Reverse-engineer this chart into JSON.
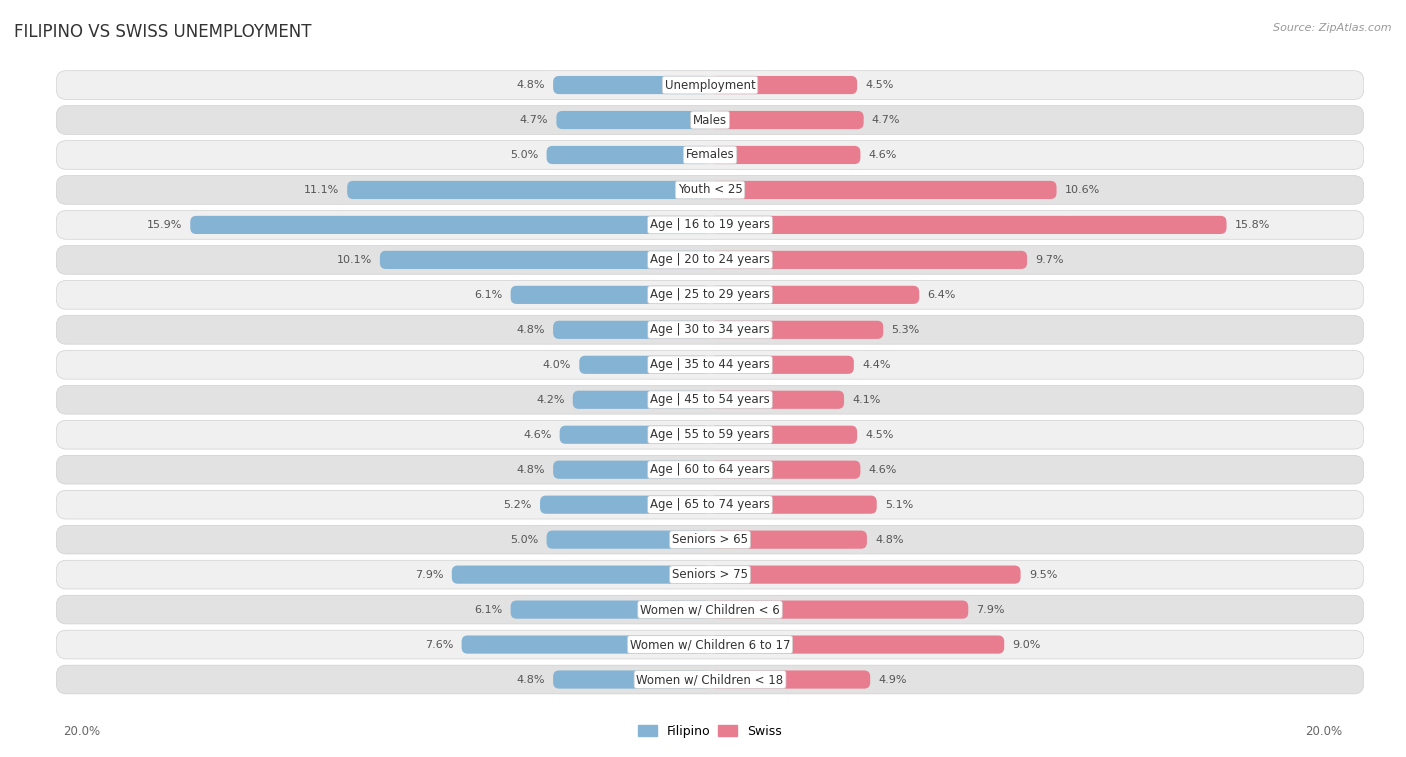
{
  "title": "FILIPINO VS SWISS UNEMPLOYMENT",
  "source": "Source: ZipAtlas.com",
  "categories": [
    "Unemployment",
    "Males",
    "Females",
    "Youth < 25",
    "Age | 16 to 19 years",
    "Age | 20 to 24 years",
    "Age | 25 to 29 years",
    "Age | 30 to 34 years",
    "Age | 35 to 44 years",
    "Age | 45 to 54 years",
    "Age | 55 to 59 years",
    "Age | 60 to 64 years",
    "Age | 65 to 74 years",
    "Seniors > 65",
    "Seniors > 75",
    "Women w/ Children < 6",
    "Women w/ Children 6 to 17",
    "Women w/ Children < 18"
  ],
  "filipino_values": [
    4.8,
    4.7,
    5.0,
    11.1,
    15.9,
    10.1,
    6.1,
    4.8,
    4.0,
    4.2,
    4.6,
    4.8,
    5.2,
    5.0,
    7.9,
    6.1,
    7.6,
    4.8
  ],
  "swiss_values": [
    4.5,
    4.7,
    4.6,
    10.6,
    15.8,
    9.7,
    6.4,
    5.3,
    4.4,
    4.1,
    4.5,
    4.6,
    5.1,
    4.8,
    9.5,
    7.9,
    9.0,
    4.9
  ],
  "filipino_color": "#85b3d4",
  "swiss_color": "#e87d90",
  "bar_height": 0.52,
  "xlim": 20.0,
  "row_bg_light": "#f0f0f0",
  "row_bg_dark": "#e2e2e2",
  "row_border_color": "#d0d0d0",
  "title_fontsize": 12,
  "label_fontsize": 8.5,
  "value_fontsize": 8.0,
  "axis_label_fontsize": 8.5,
  "legend_fontsize": 9
}
